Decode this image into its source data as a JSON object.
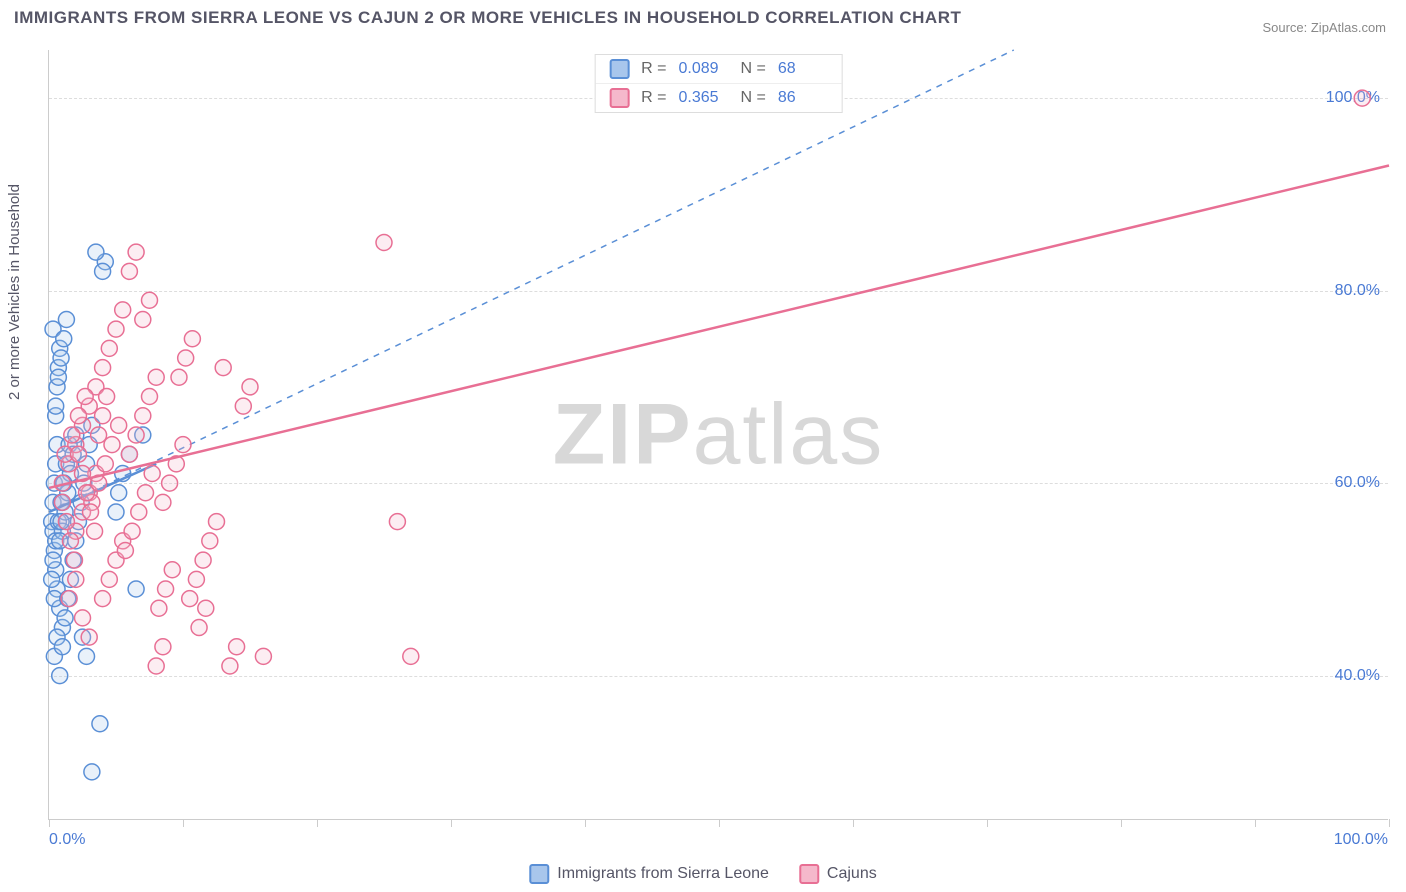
{
  "title": "IMMIGRANTS FROM SIERRA LEONE VS CAJUN 2 OR MORE VEHICLES IN HOUSEHOLD CORRELATION CHART",
  "source": "Source: ZipAtlas.com",
  "watermark_bold": "ZIP",
  "watermark_light": "atlas",
  "ylabel": "2 or more Vehicles in Household",
  "chart": {
    "type": "scatter",
    "xlim": [
      0,
      100
    ],
    "ylim": [
      25,
      105
    ],
    "x_min_label": "0.0%",
    "x_max_label": "100.0%",
    "y_gridlines": [
      40,
      60,
      80,
      100
    ],
    "y_labels": [
      "40.0%",
      "60.0%",
      "80.0%",
      "100.0%"
    ],
    "x_ticks": [
      0,
      10,
      20,
      30,
      40,
      50,
      60,
      70,
      80,
      90,
      100
    ],
    "background_color": "#ffffff",
    "grid_color": "#dddddd",
    "axis_color": "#cccccc",
    "tick_label_color": "#4a7ad4",
    "marker_radius": 8,
    "marker_stroke_width": 1.5,
    "marker_fill_opacity": 0.25,
    "series": [
      {
        "name": "Immigrants from Sierra Leone",
        "stroke": "#5a8fd6",
        "fill": "#a8c6ec",
        "R": "0.089",
        "N": "68",
        "trend_solid": {
          "x1": 0,
          "y1": 57,
          "x2": 8,
          "y2": 62
        },
        "trend_dashed": {
          "x1": 0,
          "y1": 57,
          "x2": 72,
          "y2": 105
        },
        "points": [
          [
            0.2,
            56
          ],
          [
            0.3,
            58
          ],
          [
            0.4,
            60
          ],
          [
            0.5,
            62
          ],
          [
            0.6,
            64
          ],
          [
            0.3,
            55
          ],
          [
            0.4,
            53
          ],
          [
            0.5,
            51
          ],
          [
            0.6,
            49
          ],
          [
            0.8,
            47
          ],
          [
            1.0,
            45
          ],
          [
            0.5,
            67
          ],
          [
            0.6,
            70
          ],
          [
            0.7,
            72
          ],
          [
            0.8,
            74
          ],
          [
            0.3,
            76
          ],
          [
            0.4,
            48
          ],
          [
            0.2,
            50
          ],
          [
            0.3,
            52
          ],
          [
            0.5,
            54
          ],
          [
            0.7,
            56
          ],
          [
            0.9,
            58
          ],
          [
            1.1,
            60
          ],
          [
            1.3,
            62
          ],
          [
            1.5,
            64
          ],
          [
            0.4,
            42
          ],
          [
            0.6,
            44
          ],
          [
            0.8,
            40
          ],
          [
            1.0,
            43
          ],
          [
            1.2,
            46
          ],
          [
            1.4,
            48
          ],
          [
            1.6,
            50
          ],
          [
            1.8,
            52
          ],
          [
            2.0,
            54
          ],
          [
            2.2,
            56
          ],
          [
            2.4,
            58
          ],
          [
            2.6,
            60
          ],
          [
            2.8,
            62
          ],
          [
            3.0,
            64
          ],
          [
            3.2,
            66
          ],
          [
            0.5,
            68
          ],
          [
            0.7,
            71
          ],
          [
            0.9,
            73
          ],
          [
            1.1,
            75
          ],
          [
            1.3,
            77
          ],
          [
            4.2,
            83
          ],
          [
            4.0,
            82
          ],
          [
            3.8,
            35
          ],
          [
            3.5,
            84
          ],
          [
            3.2,
            30
          ],
          [
            2.8,
            42
          ],
          [
            2.5,
            44
          ],
          [
            5.0,
            57
          ],
          [
            5.2,
            59
          ],
          [
            5.5,
            61
          ],
          [
            6.0,
            63
          ],
          [
            6.5,
            49
          ],
          [
            7.0,
            65
          ],
          [
            1.0,
            55
          ],
          [
            1.2,
            57
          ],
          [
            1.4,
            59
          ],
          [
            1.6,
            61
          ],
          [
            1.8,
            63
          ],
          [
            2.0,
            65
          ],
          [
            0.8,
            54
          ],
          [
            0.9,
            56
          ],
          [
            1.0,
            58
          ],
          [
            1.1,
            60
          ]
        ]
      },
      {
        "name": "Cajuns",
        "stroke": "#e86f94",
        "fill": "#f5b8cb",
        "R": "0.365",
        "N": "86",
        "trend_solid": {
          "x1": 0,
          "y1": 59.5,
          "x2": 100,
          "y2": 93
        },
        "trend_dashed": null,
        "points": [
          [
            1.0,
            60
          ],
          [
            1.5,
            62
          ],
          [
            2.0,
            64
          ],
          [
            2.5,
            66
          ],
          [
            3.0,
            68
          ],
          [
            3.5,
            70
          ],
          [
            4.0,
            72
          ],
          [
            4.5,
            74
          ],
          [
            5.0,
            76
          ],
          [
            5.5,
            78
          ],
          [
            6.0,
            63
          ],
          [
            6.5,
            65
          ],
          [
            7.0,
            67
          ],
          [
            7.5,
            69
          ],
          [
            8.0,
            71
          ],
          [
            8.5,
            58
          ],
          [
            9.0,
            60
          ],
          [
            9.5,
            62
          ],
          [
            10.0,
            64
          ],
          [
            10.5,
            48
          ],
          [
            11.0,
            50
          ],
          [
            11.5,
            52
          ],
          [
            12.0,
            54
          ],
          [
            12.5,
            56
          ],
          [
            13.0,
            72
          ],
          [
            13.5,
            41
          ],
          [
            14.0,
            43
          ],
          [
            14.5,
            68
          ],
          [
            15.0,
            70
          ],
          [
            16.0,
            42
          ],
          [
            25.0,
            85
          ],
          [
            26.0,
            56
          ],
          [
            27.0,
            42
          ],
          [
            2.0,
            55
          ],
          [
            2.5,
            57
          ],
          [
            3.0,
            59
          ],
          [
            3.5,
            61
          ],
          [
            4.0,
            48
          ],
          [
            4.5,
            50
          ],
          [
            5.0,
            52
          ],
          [
            5.5,
            54
          ],
          [
            6.0,
            82
          ],
          [
            6.5,
            84
          ],
          [
            7.0,
            77
          ],
          [
            7.5,
            79
          ],
          [
            8.0,
            41
          ],
          [
            8.5,
            43
          ],
          [
            1.2,
            63
          ],
          [
            1.7,
            65
          ],
          [
            2.2,
            67
          ],
          [
            2.7,
            69
          ],
          [
            3.2,
            58
          ],
          [
            3.7,
            60
          ],
          [
            4.2,
            62
          ],
          [
            4.7,
            64
          ],
          [
            5.2,
            66
          ],
          [
            5.7,
            53
          ],
          [
            6.2,
            55
          ],
          [
            6.7,
            57
          ],
          [
            7.2,
            59
          ],
          [
            7.7,
            61
          ],
          [
            8.2,
            47
          ],
          [
            8.7,
            49
          ],
          [
            9.2,
            51
          ],
          [
            9.7,
            71
          ],
          [
            10.2,
            73
          ],
          [
            10.7,
            75
          ],
          [
            11.2,
            45
          ],
          [
            11.7,
            47
          ],
          [
            1.5,
            48
          ],
          [
            2.0,
            50
          ],
          [
            2.5,
            46
          ],
          [
            3.0,
            44
          ],
          [
            98.0,
            100
          ],
          [
            1.0,
            58
          ],
          [
            1.3,
            56
          ],
          [
            1.6,
            54
          ],
          [
            1.9,
            52
          ],
          [
            2.2,
            63
          ],
          [
            2.5,
            61
          ],
          [
            2.8,
            59
          ],
          [
            3.1,
            57
          ],
          [
            3.4,
            55
          ],
          [
            3.7,
            65
          ],
          [
            4.0,
            67
          ],
          [
            4.3,
            69
          ]
        ]
      }
    ]
  },
  "legend": {
    "series1_label": "Immigrants from Sierra Leone",
    "series2_label": "Cajuns"
  },
  "stats_labels": {
    "R": "R =",
    "N": "N ="
  }
}
